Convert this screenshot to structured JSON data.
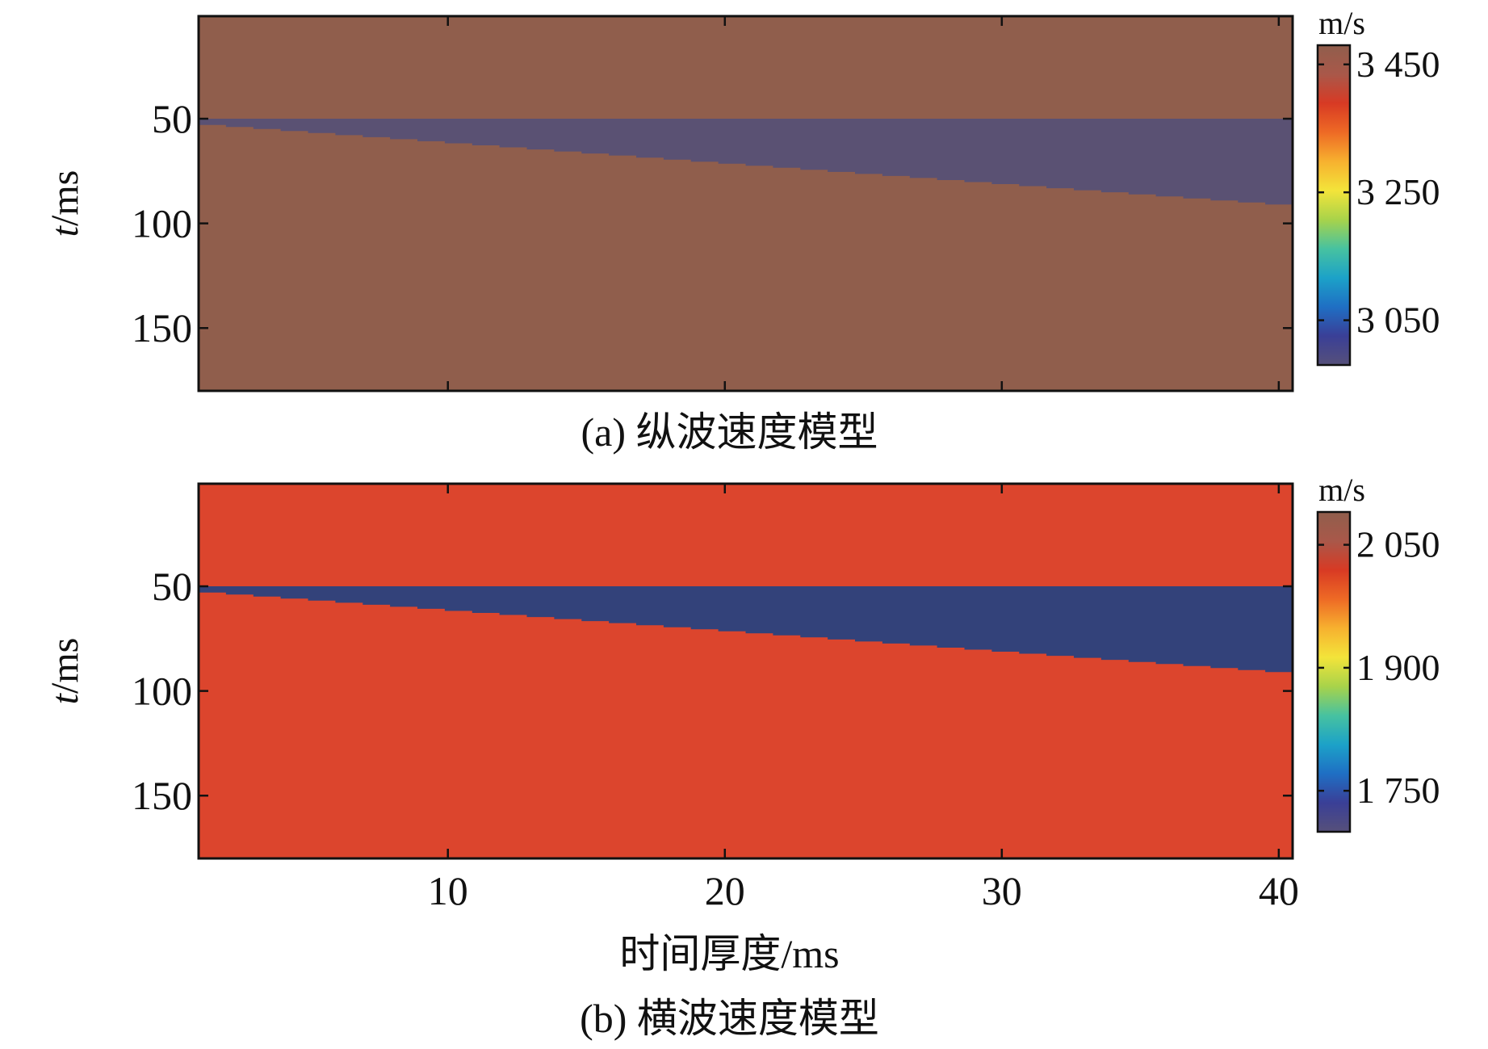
{
  "chart_data": [
    {
      "type": "heatmap",
      "subplot_label": "(a) 纵波速度模型",
      "ylabel_italic": "t",
      "ylabel_rest": "/ms",
      "xlabel": "",
      "xlim": [
        1,
        40.5
      ],
      "ylim": [
        180,
        1
      ],
      "yticks": [
        50,
        100,
        150
      ],
      "xticks": [
        10,
        20,
        30,
        40
      ],
      "show_xticklabels": false,
      "background_value": 3480,
      "wedge_value": 2980,
      "wedge_top_t": 50,
      "wedge_base_t_start": 52,
      "wedge_base_t_end": 91,
      "colorbar": {
        "unit": "m/s",
        "range": [
          2980,
          3480
        ],
        "ticks": [
          3450,
          3250,
          3050
        ],
        "tick_labels": [
          "3 450",
          "3 250",
          "3 050"
        ]
      },
      "colors": {
        "background": "#905E4C",
        "wedge": "#5A5173"
      }
    },
    {
      "type": "heatmap",
      "subplot_label": "(b) 横波速度模型",
      "ylabel_italic": "t",
      "ylabel_rest": "/ms",
      "xlabel": "时间厚度/ms",
      "xlim": [
        1,
        40.5
      ],
      "ylim": [
        180,
        1
      ],
      "yticks": [
        50,
        100,
        150
      ],
      "xticks": [
        10,
        20,
        30,
        40
      ],
      "xtick_labels": [
        "10",
        "20",
        "30",
        "40"
      ],
      "show_xticklabels": true,
      "background_value": 2070,
      "wedge_value": 1700,
      "wedge_top_t": 50,
      "wedge_base_t_start": 52,
      "wedge_base_t_end": 91,
      "colorbar": {
        "unit": "m/s",
        "range": [
          1700,
          2090
        ],
        "ticks": [
          2050,
          1900,
          1750
        ],
        "tick_labels": [
          "2 050",
          "1 900",
          "1 750"
        ]
      },
      "colors": {
        "background": "#DC452D",
        "wedge": "#33427A"
      }
    }
  ],
  "colormap": [
    "#56507A",
    "#3A3F97",
    "#1F6FC4",
    "#1CA2C8",
    "#47C2A0",
    "#A8D34A",
    "#F3E43A",
    "#F7B12F",
    "#EE6A25",
    "#D83A24",
    "#A9584A",
    "#905E4C"
  ]
}
